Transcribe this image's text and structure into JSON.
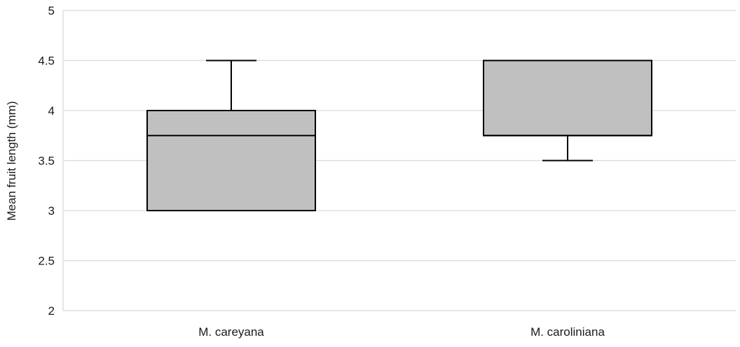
{
  "chart_data": {
    "type": "box",
    "title": "",
    "xlabel": "",
    "ylabel": "Mean fruit length (mm)",
    "ylim": [
      2,
      5
    ],
    "yticks": [
      2,
      2.5,
      3,
      3.5,
      4,
      4.5,
      5
    ],
    "grid": true,
    "legend": "none",
    "categories": [
      "M. careyana",
      "M. caroliniana"
    ],
    "boxes": [
      {
        "category": "M. careyana",
        "whisker_low": 3,
        "q1": 3,
        "median": 3.75,
        "q3": 4,
        "whisker_high": 4.5
      },
      {
        "category": "M. caroliniana",
        "whisker_low": 3.5,
        "q1": 3.75,
        "median": 3.75,
        "q3": 4.5,
        "whisker_high": 4.5
      }
    ],
    "colors": {
      "box_fill": "#c0c0c0",
      "box_stroke": "#000000",
      "grid": "#d9d9d9"
    }
  }
}
